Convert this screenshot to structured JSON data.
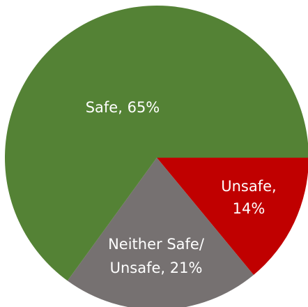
{
  "chart_data": {
    "type": "pie",
    "title": "",
    "slices": [
      {
        "label": "Unsafe",
        "value": 14,
        "color": "#c00000",
        "text_lines": [
          "Unsafe,",
          "14%"
        ]
      },
      {
        "label": "Neither Safe/ Unsafe",
        "value": 21,
        "color": "#767171",
        "text_lines": [
          "Neither Safe/",
          "Unsafe, 21%"
        ]
      },
      {
        "label": "Safe",
        "value": 65,
        "color": "#548235",
        "text_lines": [
          "Safe, 65%"
        ]
      }
    ],
    "start_angle_deg": 0,
    "direction": "clockwise",
    "legend": "none"
  }
}
